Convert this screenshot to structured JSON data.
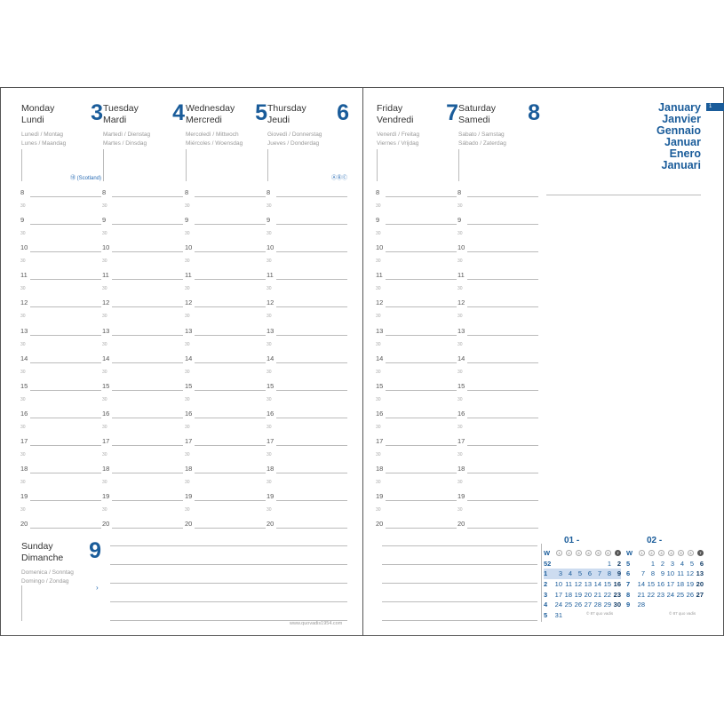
{
  "left_days": [
    {
      "name1": "Monday",
      "name2": "Lundi",
      "num": "3",
      "sub1": "Lunedì / Montag",
      "sub2": "Lunes / Maandag",
      "note": "⑱ (Scotland)"
    },
    {
      "name1": "Tuesday",
      "name2": "Mardi",
      "num": "4",
      "sub1": "Martedì / Dienstag",
      "sub2": "Martes / Dinsdag",
      "note": ""
    },
    {
      "name1": "Wednesday",
      "name2": "Mercredi",
      "num": "5",
      "sub1": "Mercoledì / Mittwoch",
      "sub2": "Miércoles / Woensdag",
      "note": ""
    },
    {
      "name1": "Thursday",
      "name2": "Jeudi",
      "num": "6",
      "sub1": "Giovedì / Donnerstag",
      "sub2": "Jueves / Donderdag",
      "note": "ⒶⒷⒸ"
    }
  ],
  "right_days": [
    {
      "name1": "Friday",
      "name2": "Vendredi",
      "num": "7",
      "sub1": "Venerdì / Freitag",
      "sub2": "Viernes / Vrijdag",
      "note": ""
    },
    {
      "name1": "Saturday",
      "name2": "Samedi",
      "num": "8",
      "sub1": "Sabato / Samstag",
      "sub2": "Sábado / Zaterdag",
      "note": ""
    }
  ],
  "hours": [
    "8",
    "9",
    "10",
    "11",
    "12",
    "13",
    "14",
    "15",
    "16",
    "17",
    "18",
    "19",
    "20"
  ],
  "half_label": "30",
  "sunday": {
    "name1": "Sunday",
    "name2": "Dimanche",
    "num": "9",
    "sub1": "Domenica / Sonntag",
    "sub2": "Domingo / Zondag",
    "arrow": "›"
  },
  "website": "www.quovadis1954.com",
  "months": [
    "January",
    "Janvier",
    "Gennaio",
    "Januar",
    "Enero",
    "Januari"
  ],
  "month_tab": "1",
  "accent": "#1a5c9a",
  "calendars": [
    {
      "title": "01 -",
      "header": [
        "W",
        "1",
        "2",
        "3",
        "4",
        "5",
        "6",
        "7"
      ],
      "rows": [
        [
          "52",
          "",
          "",
          "",
          "",
          "",
          "1",
          "2"
        ],
        [
          "1",
          "3",
          "4",
          "5",
          "6",
          "7",
          "8",
          "9"
        ],
        [
          "2",
          "10",
          "11",
          "12",
          "13",
          "14",
          "15",
          "16"
        ],
        [
          "3",
          "17",
          "18",
          "19",
          "20",
          "21",
          "22",
          "23"
        ],
        [
          "4",
          "24",
          "25",
          "26",
          "27",
          "28",
          "29",
          "30"
        ],
        [
          "5",
          "31",
          "",
          "",
          "",
          "",
          "",
          ""
        ]
      ],
      "highlight_row": 1,
      "copyright": "© 87 quo vadis"
    },
    {
      "title": "02 -",
      "header": [
        "W",
        "1",
        "2",
        "3",
        "4",
        "5",
        "6",
        "7"
      ],
      "rows": [
        [
          "5",
          "",
          "1",
          "2",
          "3",
          "4",
          "5",
          "6"
        ],
        [
          "6",
          "7",
          "8",
          "9",
          "10",
          "11",
          "12",
          "13"
        ],
        [
          "7",
          "14",
          "15",
          "16",
          "17",
          "18",
          "19",
          "20"
        ],
        [
          "8",
          "21",
          "22",
          "23",
          "24",
          "25",
          "26",
          "27"
        ],
        [
          "9",
          "28",
          "",
          "",
          "",
          "",
          "",
          ""
        ]
      ],
      "highlight_row": -1,
      "copyright": "© 87 quo vadis"
    }
  ]
}
